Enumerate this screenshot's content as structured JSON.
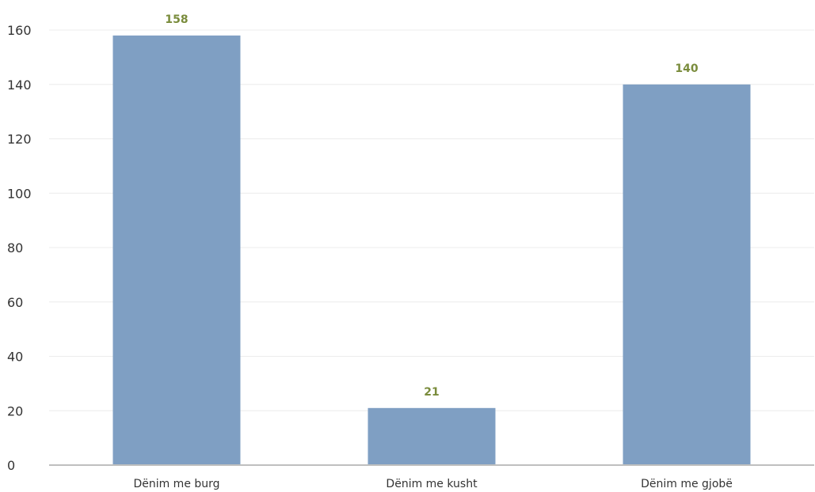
{
  "chart_data": {
    "type": "bar",
    "categories": [
      "Dënim me burg",
      "Dënim me kusht",
      "Dënim me gjobë"
    ],
    "values": [
      158,
      21,
      140
    ],
    "title": "",
    "xlabel": "",
    "ylabel": "",
    "ylim": [
      0,
      160
    ],
    "yticks": [
      0,
      20,
      40,
      60,
      80,
      100,
      120,
      140,
      160
    ],
    "grid": true,
    "legend": "none",
    "colors": {
      "bar": "#7f9fc3",
      "data_label": "#7a8c3c",
      "gridline": "#ececec",
      "axis": "#bfbfbf"
    }
  }
}
